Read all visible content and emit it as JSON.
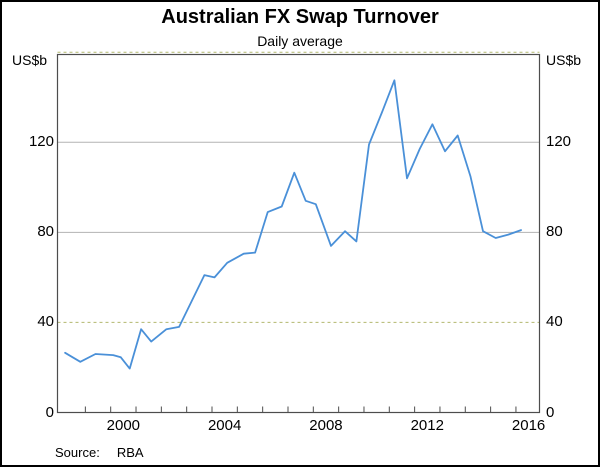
{
  "title": "Australian FX Swap Turnover",
  "subtitle": "Daily average",
  "axis_unit_left": "US$b",
  "axis_unit_right": "US$b",
  "source_label": "Source:",
  "source_value": "RBA",
  "colors": {
    "line": "#4a90d8",
    "grid_solid": "#b3b3b3",
    "grid_dashed": "#b2b86e",
    "plot_border": "#4d4d4d",
    "outer_border": "#000000"
  },
  "chart_data": {
    "type": "line",
    "title": "Australian FX Swap Turnover",
    "subtitle": "Daily average",
    "xlabel": "",
    "ylabel": "US$b",
    "ylim": [
      0,
      160
    ],
    "xlim": [
      1997.9,
      2016.93
    ],
    "yticks": [
      0,
      40,
      80,
      120
    ],
    "ytick_labels": [
      "0",
      "40",
      "80",
      "120"
    ],
    "gridlines_solid": [
      80,
      120
    ],
    "gridlines_dashed": [
      40,
      160
    ],
    "xticks_labeled": [
      2000,
      2004,
      2008,
      2012,
      2016
    ],
    "xtick_years_minor": [
      1999,
      2000,
      2001,
      2002,
      2003,
      2004,
      2005,
      2006,
      2007,
      2008,
      2009,
      2010,
      2011,
      2012,
      2013,
      2014,
      2015,
      2016
    ],
    "legend": "none",
    "grid": "horizontal",
    "series": [
      {
        "name": "Australian FX swap turnover, daily average (US$b)",
        "color": "#4a90d8",
        "points": [
          [
            1998.2,
            26.5
          ],
          [
            1998.8,
            22.5
          ],
          [
            1999.4,
            26.0
          ],
          [
            2000.1,
            25.5
          ],
          [
            2000.4,
            24.5
          ],
          [
            2000.75,
            19.5
          ],
          [
            2001.2,
            37.0
          ],
          [
            2001.6,
            31.5
          ],
          [
            2002.2,
            37.0
          ],
          [
            2002.7,
            38.0
          ],
          [
            2003.7,
            61.0
          ],
          [
            2004.1,
            60.0
          ],
          [
            2004.6,
            66.5
          ],
          [
            2005.25,
            70.5
          ],
          [
            2005.7,
            71.0
          ],
          [
            2006.2,
            89.0
          ],
          [
            2006.75,
            91.5
          ],
          [
            2007.25,
            106.5
          ],
          [
            2007.7,
            94.0
          ],
          [
            2008.1,
            92.5
          ],
          [
            2008.7,
            74.0
          ],
          [
            2009.25,
            80.5
          ],
          [
            2009.7,
            76.0
          ],
          [
            2010.2,
            119.0
          ],
          [
            2010.7,
            133.0
          ],
          [
            2011.2,
            147.5
          ],
          [
            2011.7,
            104.0
          ],
          [
            2012.2,
            117.0
          ],
          [
            2012.7,
            128.0
          ],
          [
            2013.2,
            116.0
          ],
          [
            2013.7,
            123.0
          ],
          [
            2014.2,
            105.0
          ],
          [
            2014.7,
            80.5
          ],
          [
            2015.2,
            77.5
          ],
          [
            2015.7,
            79.0
          ],
          [
            2016.2,
            81.0
          ]
        ]
      }
    ],
    "source": "RBA"
  }
}
